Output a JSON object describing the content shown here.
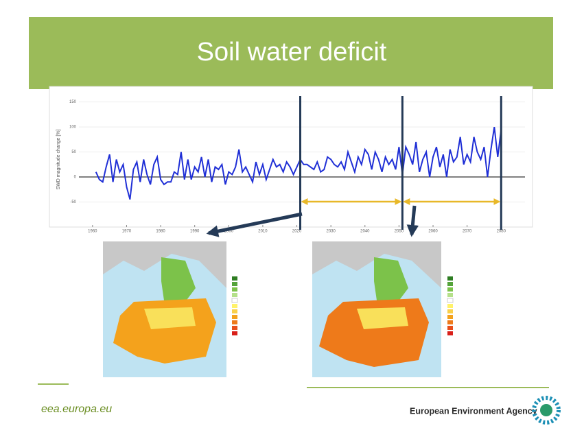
{
  "title": "Soil water deficit",
  "chart_data": {
    "type": "line",
    "y_label": "SWD magnitude change [%]",
    "x": [
      1961,
      1962,
      1963,
      1964,
      1965,
      1966,
      1967,
      1968,
      1969,
      1970,
      1971,
      1972,
      1973,
      1974,
      1975,
      1976,
      1977,
      1978,
      1979,
      1980,
      1981,
      1982,
      1983,
      1984,
      1985,
      1986,
      1987,
      1988,
      1989,
      1990,
      1991,
      1992,
      1993,
      1994,
      1995,
      1996,
      1997,
      1998,
      1999,
      2000,
      2001,
      2002,
      2003,
      2004,
      2005,
      2006,
      2007,
      2008,
      2009,
      2010,
      2011,
      2012,
      2013,
      2014,
      2015,
      2016,
      2017,
      2018,
      2019,
      2020,
      2021,
      2022,
      2023,
      2024,
      2025,
      2026,
      2027,
      2028,
      2029,
      2030,
      2031,
      2032,
      2033,
      2034,
      2035,
      2036,
      2037,
      2038,
      2039,
      2040,
      2041,
      2042,
      2043,
      2044,
      2045,
      2046,
      2047,
      2048,
      2049,
      2050,
      2051,
      2052,
      2053,
      2054,
      2055,
      2056,
      2057,
      2058,
      2059,
      2060,
      2061,
      2062,
      2063,
      2064,
      2065,
      2066,
      2067,
      2068,
      2069,
      2070,
      2071,
      2072,
      2073,
      2074,
      2075,
      2076,
      2077,
      2078,
      2079,
      2080
    ],
    "values": [
      10,
      -5,
      -10,
      20,
      45,
      -10,
      35,
      10,
      25,
      -20,
      -45,
      15,
      30,
      -10,
      35,
      5,
      -15,
      25,
      40,
      -5,
      -15,
      -10,
      -10,
      10,
      5,
      50,
      -5,
      35,
      -5,
      20,
      10,
      40,
      0,
      35,
      -10,
      20,
      15,
      25,
      -15,
      10,
      5,
      20,
      55,
      10,
      20,
      5,
      -10,
      30,
      5,
      25,
      -5,
      15,
      35,
      20,
      25,
      10,
      30,
      20,
      5,
      20,
      35,
      25,
      25,
      20,
      15,
      30,
      10,
      15,
      40,
      35,
      25,
      20,
      30,
      15,
      50,
      30,
      10,
      40,
      25,
      55,
      45,
      15,
      50,
      35,
      10,
      40,
      25,
      35,
      15,
      60,
      5,
      60,
      45,
      25,
      70,
      10,
      35,
      50,
      0,
      40,
      60,
      20,
      45,
      0,
      55,
      30,
      40,
      80,
      25,
      45,
      30,
      80,
      50,
      35,
      60,
      0,
      55,
      100,
      40,
      95
    ],
    "color": "#1f2fd6",
    "xlim": [
      1956,
      2087
    ],
    "ylim": [
      -96,
      166
    ],
    "xticks": [
      1960,
      1970,
      1980,
      1990,
      2000,
      2010,
      2020,
      2030,
      2040,
      2050,
      2060,
      2070,
      2080
    ],
    "yticks": [
      -50,
      0,
      50,
      100,
      150
    ],
    "markers": [
      2021,
      2051,
      2080
    ]
  },
  "footer": {
    "url": "eea.europa.eu",
    "agency": "European Environment Agency"
  }
}
